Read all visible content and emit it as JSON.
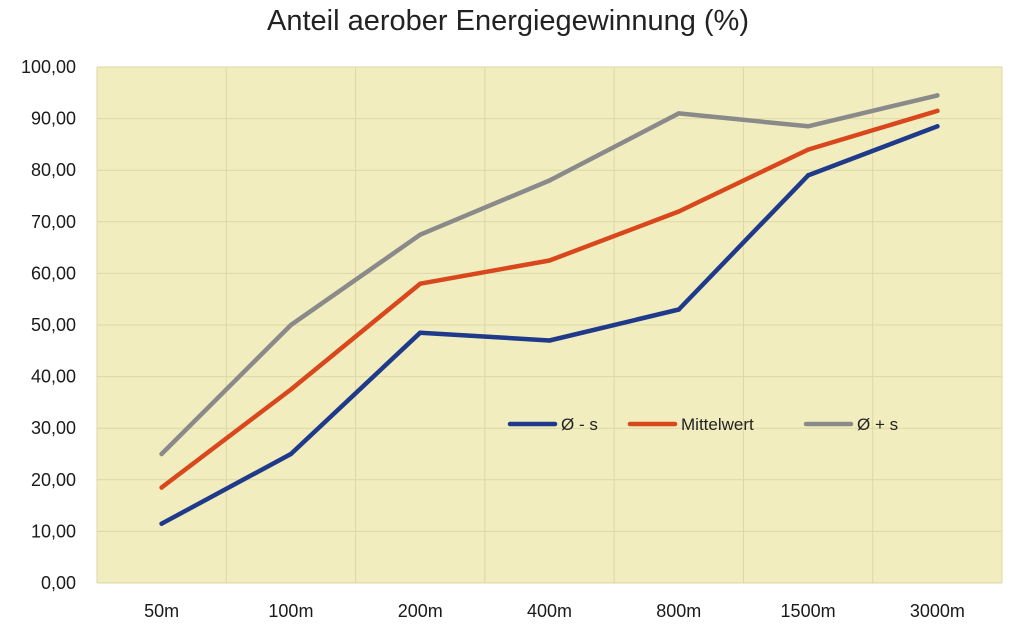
{
  "chart_data": {
    "type": "line",
    "title": "Anteil aerober Energiegewinnung (%)",
    "xlabel": "",
    "ylabel": "",
    "categories": [
      "50m",
      "100m",
      "200m",
      "400m",
      "800m",
      "1500m",
      "3000m"
    ],
    "ylim": [
      0,
      100
    ],
    "yticks": [
      "0,00",
      "10,00",
      "20,00",
      "30,00",
      "40,00",
      "50,00",
      "60,00",
      "70,00",
      "80,00",
      "90,00",
      "100,00"
    ],
    "grid": true,
    "legend_position": "center-right",
    "plot_background": "#f1edbf",
    "series": [
      {
        "name": "Ø - s",
        "color": "#1f3a8a",
        "values": [
          11.5,
          25,
          48.5,
          47,
          53,
          79,
          88.5
        ]
      },
      {
        "name": "Mittelwert",
        "color": "#d9481c",
        "values": [
          18.5,
          37.5,
          58,
          62.5,
          72,
          84,
          91.5
        ]
      },
      {
        "name": "Ø + s",
        "color": "#8a8a8a",
        "values": [
          25,
          50,
          67.5,
          78,
          91,
          88.5,
          94.5
        ]
      }
    ]
  }
}
